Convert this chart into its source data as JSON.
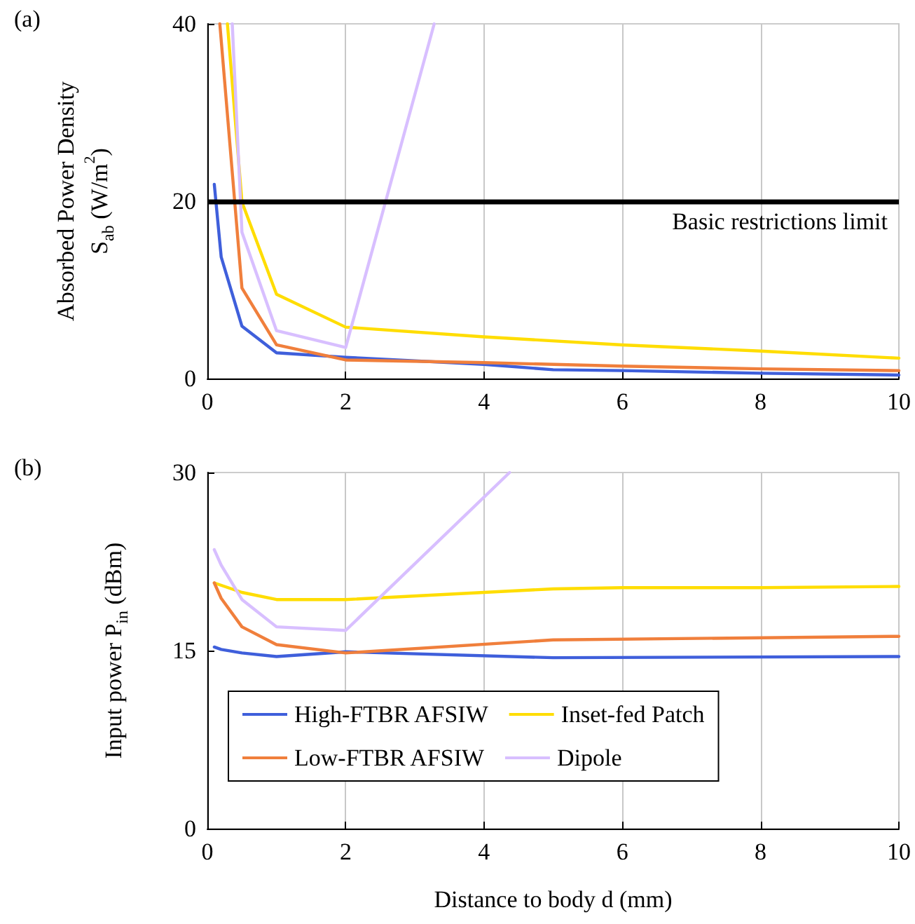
{
  "chart_data": [
    {
      "type": "line",
      "title": "(a)",
      "ylabel": "Absorbed Power Density\nS$_{ab}$ (W/m$^{2}$)",
      "xlim": [
        0,
        10
      ],
      "xticks": [
        0,
        2,
        4,
        6,
        8,
        10
      ],
      "ylim": [
        0,
        40
      ],
      "yticks": [
        0,
        20,
        40
      ],
      "grid": "x",
      "legend": false,
      "marker": "none",
      "line_style": "solid",
      "series": [
        {
          "color": "#3f5fdb",
          "x": [
            0.1,
            0.2,
            0.5,
            1,
            2,
            4,
            5,
            6,
            8,
            10
          ],
          "values": [
            21.9,
            13.7,
            5.9,
            2.9,
            2.4,
            1.6,
            1.0,
            0.9,
            0.6,
            0.4
          ]
        },
        {
          "color": "#ffdd00",
          "x": [
            0.29,
            0.5,
            1,
            2,
            4,
            6,
            8,
            10
          ],
          "values": [
            40,
            19.9,
            9.5,
            5.8,
            4.7,
            3.8,
            3.1,
            2.3
          ]
        },
        {
          "color": "#f07f3c",
          "x": [
            0.18,
            0.5,
            1,
            2,
            4,
            6,
            8,
            10
          ],
          "values": [
            40,
            10.2,
            3.8,
            2.1,
            1.8,
            1.4,
            1.1,
            0.9
          ]
        },
        {
          "color": "#d8bfff",
          "x": [
            0.36,
            0.5,
            1,
            2,
            3.28
          ],
          "values": [
            40,
            16.5,
            5.4,
            3.5,
            40
          ]
        }
      ],
      "ref_lines": [
        {
          "axis": "y",
          "value": 20,
          "label": "Basic restrictions limit",
          "color": "#000000"
        }
      ]
    },
    {
      "type": "line",
      "title": "(b)",
      "xlabel": "Distance to body d (mm)",
      "ylabel": "Input power P$_{in}$ (dBm)",
      "xlim": [
        0,
        10
      ],
      "xticks": [
        0,
        2,
        4,
        6,
        8,
        10
      ],
      "ylim": [
        0,
        30
      ],
      "yticks": [
        0,
        15,
        30
      ],
      "grid": "x",
      "legend": "bottom",
      "marker": "none",
      "line_style": "solid",
      "series": [
        {
          "name": "High-FTBR AFSIW",
          "color": "#3f5fdb",
          "x": [
            0.1,
            0.2,
            0.5,
            1,
            2,
            5,
            10
          ],
          "values": [
            15.3,
            15.1,
            14.8,
            14.5,
            14.9,
            14.4,
            14.5
          ]
        },
        {
          "name": "Inset-fed Patch",
          "color": "#ffdd00",
          "x": [
            0.1,
            0.5,
            1,
            2,
            4,
            5,
            6,
            8,
            10
          ],
          "values": [
            20.7,
            19.9,
            19.3,
            19.3,
            19.9,
            20.2,
            20.3,
            20.3,
            20.4
          ]
        },
        {
          "name": "Low-FTBR AFSIW",
          "color": "#f07f3c",
          "x": [
            0.1,
            0.2,
            0.5,
            1,
            2,
            5,
            10
          ],
          "values": [
            20.7,
            19.4,
            17.0,
            15.5,
            14.8,
            15.9,
            16.2
          ]
        },
        {
          "name": "Dipole",
          "color": "#d8bfff",
          "x": [
            0.1,
            0.2,
            0.5,
            1,
            2,
            4.37
          ],
          "values": [
            23.5,
            22.2,
            19.3,
            17.0,
            16.7,
            30
          ]
        }
      ]
    }
  ]
}
